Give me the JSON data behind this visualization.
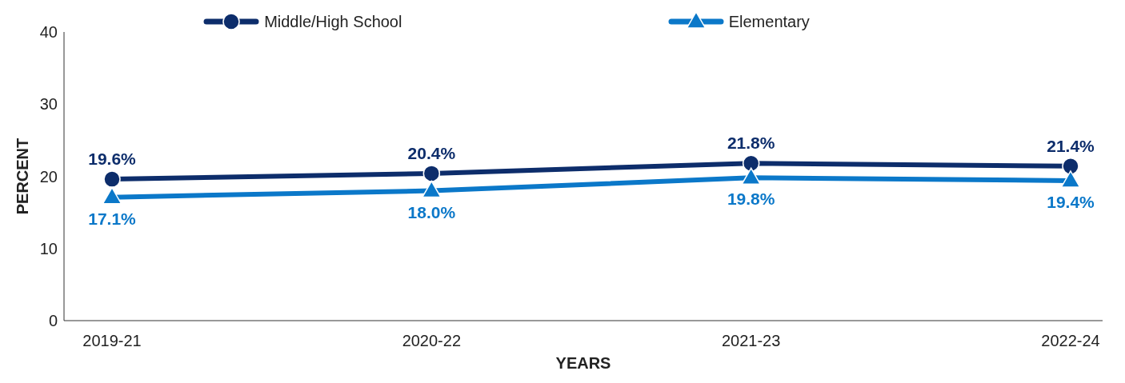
{
  "chart_data": {
    "type": "line",
    "xlabel": "YEARS",
    "ylabel": "PERCENT",
    "categories": [
      "2019-21",
      "2020-22",
      "2021-23",
      "2022-24"
    ],
    "series": [
      {
        "name": "Middle/High School",
        "color": "#0d2d6b",
        "marker": "circle",
        "values": [
          19.6,
          20.4,
          21.8,
          21.4
        ],
        "value_labels": [
          "19.6%",
          "20.4%",
          "21.8%",
          "21.4%"
        ]
      },
      {
        "name": "Elementary",
        "color": "#0b78c9",
        "marker": "triangle",
        "values": [
          17.1,
          18.0,
          19.8,
          19.4
        ],
        "value_labels": [
          "17.1%",
          "18.0%",
          "19.8%",
          "19.4%"
        ]
      }
    ],
    "ylim": [
      0,
      40
    ],
    "yticks": [
      0,
      10,
      20,
      30,
      40
    ],
    "grid": false,
    "legend": "top",
    "line_style": "solid"
  }
}
